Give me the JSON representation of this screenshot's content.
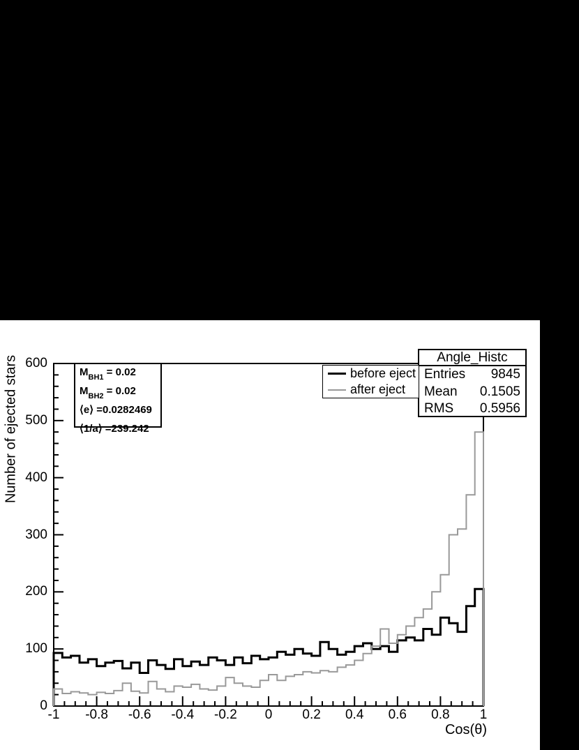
{
  "page": {
    "background_color": "#000000",
    "pad_background_color": "#ffffff"
  },
  "chart_data": {
    "type": "line",
    "subtype": "step-histogram",
    "title": "Angle_Histc",
    "x": {
      "label": "Cos(θ)",
      "min": -1,
      "max": 1,
      "major_tick_step": 0.2,
      "minor_tick_step": 0.05,
      "tick_labels": [
        "-1",
        "-0.8",
        "-0.6",
        "-0.4",
        "-0.2",
        "0",
        "0.2",
        "0.4",
        "0.6",
        "0.8",
        "1"
      ]
    },
    "y": {
      "label": "Number of ejected stars",
      "min": 0,
      "max": 600,
      "major_tick_step": 100,
      "minor_tick_step": 20,
      "tick_labels": [
        "0",
        "100",
        "200",
        "300",
        "400",
        "500",
        "600"
      ]
    },
    "bin_width": 0.04,
    "n_bins": 50,
    "grid": false,
    "legend_position": "top-right-inside",
    "series": [
      {
        "name": "before eject",
        "color": "#000000",
        "line_width": 3,
        "values": [
          93,
          85,
          88,
          76,
          82,
          70,
          76,
          79,
          66,
          76,
          58,
          80,
          72,
          65,
          82,
          70,
          78,
          72,
          85,
          80,
          72,
          85,
          75,
          88,
          82,
          85,
          95,
          90,
          100,
          92,
          88,
          112,
          100,
          90,
          95,
          105,
          110,
          100,
          105,
          95,
          115,
          120,
          115,
          135,
          125,
          155,
          145,
          130,
          175,
          205
        ]
      },
      {
        "name": "after eject",
        "color": "#999999",
        "line_width": 2,
        "values": [
          30,
          22,
          25,
          23,
          20,
          24,
          22,
          27,
          40,
          26,
          23,
          43,
          30,
          25,
          35,
          33,
          38,
          30,
          28,
          35,
          50,
          40,
          35,
          33,
          45,
          55,
          45,
          52,
          55,
          60,
          58,
          62,
          60,
          68,
          72,
          80,
          92,
          105,
          135,
          110,
          125,
          140,
          155,
          170,
          200,
          230,
          300,
          310,
          370,
          480
        ]
      }
    ],
    "stats_box": {
      "title": "Angle_Histc",
      "rows": [
        [
          "Entries",
          "9845"
        ],
        [
          "Mean",
          "0.1505"
        ],
        [
          "RMS",
          "0.5956"
        ]
      ]
    },
    "annotation_box": {
      "lines": [
        {
          "main": "M",
          "sub": "BH1",
          "rest": " = 0.02"
        },
        {
          "main": "M",
          "sub": "BH2",
          "rest": " = 0.02"
        },
        {
          "main": "⟨e⟩ =0.0282469",
          "sub": "",
          "rest": ""
        },
        {
          "main": "⟨1/a⟩ =239.242",
          "sub": "",
          "rest": ""
        }
      ]
    }
  }
}
